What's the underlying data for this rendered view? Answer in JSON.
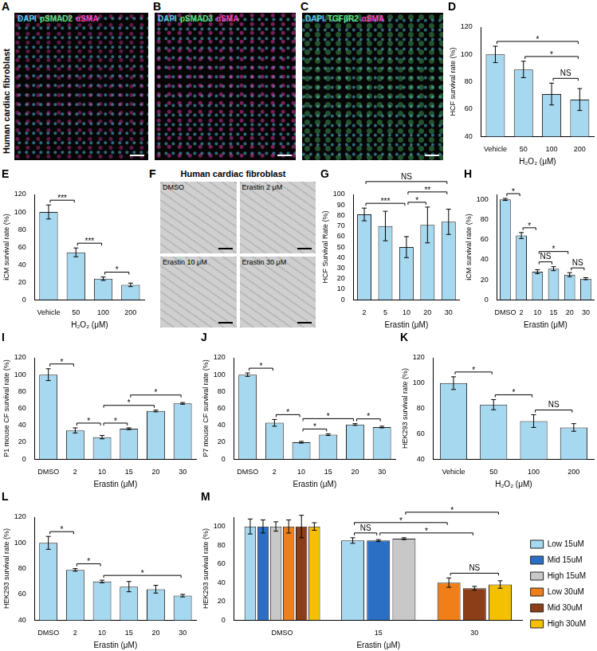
{
  "panels": [
    {
      "panel_label": "A",
      "side_label": "Human cardiac fibroblast",
      "stain": [
        {
          "text": "DAPI",
          "color": "#5ec8f0"
        },
        {
          "text": "pSMAD2",
          "color": "#5be07a"
        },
        {
          "text": "αSMA",
          "color": "#ff3fbf"
        }
      ]
    },
    {
      "panel_label": "B",
      "stain": [
        {
          "text": "DAPI",
          "color": "#5ec8f0"
        },
        {
          "text": "pSMAD3",
          "color": "#5be07a"
        },
        {
          "text": "αSMA",
          "color": "#ff3fbf"
        }
      ]
    },
    {
      "panel_label": "C",
      "stain": [
        {
          "text": "DAPI",
          "color": "#5ec8f0"
        },
        {
          "text": "TGFβR2",
          "color": "#5be07a"
        },
        {
          "text": "αSMA",
          "color": "#ff3fbf"
        }
      ]
    },
    {
      "panel_label": "F",
      "title": "Human cardiac fibroblast",
      "images": [
        "DMSO",
        "Erastin 2 μM",
        "Erastin 10 μM",
        "Erastin 30 μM"
      ]
    }
  ],
  "chart_data": [
    {
      "panel_label": "D",
      "type": "bar",
      "categories": [
        "Vehicle",
        "50",
        "100",
        "200"
      ],
      "values": [
        100,
        89,
        71,
        67
      ],
      "errors": [
        6,
        6,
        8,
        8
      ],
      "color": "#a6d8f0",
      "y_label": "HCF survival rate (%)",
      "x_label": "H₂O₂ (μM)",
      "ylim": [
        40,
        120
      ],
      "yticks": [
        40,
        60,
        80,
        100,
        120
      ],
      "grid": false,
      "annotations": [
        {
          "between": [
            "Vehicle",
            "200"
          ],
          "text": "*"
        },
        {
          "between": [
            "50",
            "200"
          ],
          "text": "*"
        },
        {
          "between": [
            "100",
            "200"
          ],
          "text": "NS"
        }
      ]
    },
    {
      "panel_label": "E",
      "type": "bar",
      "categories": [
        "Vehicle",
        "50",
        "100",
        "200"
      ],
      "values": [
        100,
        54,
        24,
        17
      ],
      "errors": [
        8,
        5,
        2,
        2
      ],
      "color": "#a6d8f0",
      "y_label": "iCM survival rate (%)",
      "x_label": "H₂O₂ (μM)",
      "ylim": [
        0,
        120
      ],
      "yticks": [
        0,
        20,
        40,
        60,
        80,
        100,
        120
      ],
      "grid": false,
      "annotations": [
        {
          "between": [
            "Vehicle",
            "50"
          ],
          "text": "***"
        },
        {
          "between": [
            "50",
            "100"
          ],
          "text": "***"
        },
        {
          "between": [
            "100",
            "200"
          ],
          "text": "*"
        }
      ]
    },
    {
      "panel_label": "G",
      "type": "bar",
      "categories": [
        "2",
        "5",
        "10",
        "20",
        "30"
      ],
      "values": [
        81,
        70,
        50,
        71,
        74
      ],
      "errors": [
        6,
        14,
        10,
        17,
        12
      ],
      "color": "#a6d8f0",
      "y_label": "HCF Survival Rate (%)",
      "x_label": "Erastin (μM)",
      "ylim": [
        0,
        100
      ],
      "yticks": [
        0,
        10,
        20,
        30,
        40,
        50,
        60,
        70,
        80,
        90,
        100
      ],
      "grid": false,
      "annotations": [
        {
          "between": [
            "2",
            "10"
          ],
          "text": "***"
        },
        {
          "between": [
            "10",
            "20"
          ],
          "text": "*"
        },
        {
          "between": [
            "10",
            "30"
          ],
          "text": "**"
        },
        {
          "between": [
            "2",
            "30"
          ],
          "text": "NS"
        }
      ]
    },
    {
      "panel_label": "H",
      "type": "bar",
      "categories": [
        "DMSO",
        "2",
        "10",
        "15",
        "20",
        "30"
      ],
      "values": [
        100,
        64,
        28,
        31,
        25,
        21
      ],
      "errors": [
        1,
        3,
        2,
        2,
        2,
        1
      ],
      "color": "#a6d8f0",
      "y_label": "iCM survival rate (%)",
      "x_label": "Erastin (μM)",
      "ylim": [
        0,
        105
      ],
      "yticks": [
        0,
        20,
        40,
        60,
        80,
        100
      ],
      "grid": false,
      "annotations": [
        {
          "between": [
            "DMSO",
            "2"
          ],
          "text": "*"
        },
        {
          "between": [
            "2",
            "10"
          ],
          "text": "*"
        },
        {
          "between": [
            "10",
            "15"
          ],
          "text": "NS"
        },
        {
          "between": [
            "10",
            "20"
          ],
          "text": "*"
        },
        {
          "between": [
            "20",
            "30"
          ],
          "text": "NS"
        }
      ]
    },
    {
      "panel_label": "I",
      "type": "bar",
      "categories": [
        "DMSO",
        "2",
        "10",
        "15",
        "20",
        "30"
      ],
      "values": [
        100,
        34,
        26,
        36,
        57,
        66
      ],
      "errors": [
        7,
        3,
        2,
        1,
        1,
        1
      ],
      "color": "#a6d8f0",
      "y_label": "P1 mouse CF survival rate (%)",
      "x_label": "Erastin (μM)",
      "ylim": [
        0,
        120
      ],
      "yticks": [
        0,
        20,
        40,
        60,
        80,
        100,
        120
      ],
      "grid": false,
      "annotations": [
        {
          "between": [
            "DMSO",
            "2"
          ],
          "text": "*"
        },
        {
          "between": [
            "2",
            "10"
          ],
          "text": "*"
        },
        {
          "between": [
            "10",
            "15"
          ],
          "text": "*"
        },
        {
          "between": [
            "10",
            "20"
          ],
          "text": "*"
        },
        {
          "between": [
            "15",
            "30"
          ],
          "text": "*"
        }
      ]
    },
    {
      "panel_label": "J",
      "type": "bar",
      "categories": [
        "DMSO",
        "2",
        "10",
        "15",
        "20",
        "30"
      ],
      "values": [
        100,
        43,
        20,
        29,
        41,
        38
      ],
      "errors": [
        2,
        4,
        1,
        1,
        1,
        1
      ],
      "color": "#a6d8f0",
      "y_label": "P7 mouse CF survival rate (%)",
      "x_label": "Erastin (μM)",
      "ylim": [
        0,
        120
      ],
      "yticks": [
        0,
        20,
        40,
        60,
        80,
        100,
        120
      ],
      "grid": false,
      "annotations": [
        {
          "between": [
            "DMSO",
            "2"
          ],
          "text": "*"
        },
        {
          "between": [
            "2",
            "10"
          ],
          "text": "*"
        },
        {
          "between": [
            "10",
            "15"
          ],
          "text": "*"
        },
        {
          "between": [
            "10",
            "20"
          ],
          "text": "*"
        },
        {
          "between": [
            "20",
            "30"
          ],
          "text": "*"
        }
      ]
    },
    {
      "panel_label": "K",
      "type": "bar",
      "categories": [
        "Vehicle",
        "50",
        "100",
        "200"
      ],
      "values": [
        100,
        83,
        70,
        65
      ],
      "errors": [
        5,
        4,
        5,
        3
      ],
      "color": "#a6d8f0",
      "y_label": "HEK293 survival rate (%)",
      "x_label": "H₂O₂ (μM)",
      "ylim": [
        40,
        120
      ],
      "yticks": [
        40,
        60,
        80,
        100,
        120
      ],
      "grid": false,
      "annotations": [
        {
          "between": [
            "Vehicle",
            "50"
          ],
          "text": "*"
        },
        {
          "between": [
            "50",
            "100"
          ],
          "text": "*"
        },
        {
          "between": [
            "100",
            "200"
          ],
          "text": "NS"
        }
      ]
    },
    {
      "panel_label": "L",
      "type": "bar",
      "categories": [
        "DMSO",
        "2",
        "10",
        "15",
        "20",
        "30"
      ],
      "values": [
        100,
        79,
        70,
        66,
        64,
        59
      ],
      "errors": [
        5,
        1,
        1,
        4,
        3,
        1
      ],
      "color": "#a6d8f0",
      "y_label": "HEK293 survival rate (%)",
      "x_label": "Erastin (μM)",
      "ylim": [
        40,
        120
      ],
      "yticks": [
        40,
        60,
        80,
        100,
        120
      ],
      "grid": false,
      "annotations": [
        {
          "between": [
            "DMSO",
            "2"
          ],
          "text": "*"
        },
        {
          "between": [
            "2",
            "10"
          ],
          "text": "*"
        },
        {
          "between": [
            "10",
            "30"
          ],
          "text": "*"
        }
      ]
    },
    {
      "panel_label": "M",
      "type": "bar",
      "categories": [
        "DMSO",
        "15",
        "30"
      ],
      "y_label": "HEK293 survival rate (%)",
      "x_label": "Erastin (μM)",
      "ylim": [
        0,
        110
      ],
      "yticks": [
        0,
        20,
        40,
        60,
        80,
        100
      ],
      "grid": false,
      "legend": "right",
      "series": [
        {
          "name": "Low 15uM",
          "color": "#a6d8f0",
          "values": [
            100,
            85,
            null
          ],
          "errors": [
            8,
            3,
            null
          ]
        },
        {
          "name": "Mid 15uM",
          "color": "#2b6fc4",
          "values": [
            100,
            85,
            null
          ],
          "errors": [
            7,
            1,
            null
          ]
        },
        {
          "name": "High 15uM",
          "color": "#c8c8c8",
          "values": [
            100,
            87,
            null
          ],
          "errors": [
            5,
            1,
            null
          ]
        },
        {
          "name": "Low 30uM",
          "color": "#f07f1a",
          "values": [
            100,
            null,
            40
          ],
          "errors": [
            7,
            null,
            5
          ]
        },
        {
          "name": "Mid 30uM",
          "color": "#8b3e17",
          "values": [
            100,
            null,
            34
          ],
          "errors": [
            12,
            null,
            2
          ]
        },
        {
          "name": "High 30uM",
          "color": "#f5c000",
          "values": [
            100,
            null,
            38
          ],
          "errors": [
            4,
            null,
            4
          ]
        }
      ],
      "annotations": [
        {
          "between": [
            [
              "15",
              "Low 15uM"
            ],
            [
              "15",
              "Mid 15uM"
            ]
          ],
          "text": "NS"
        },
        {
          "between": [
            [
              "15",
              "Low 15uM"
            ],
            [
              "30",
              "Low 30uM"
            ]
          ],
          "text": "*"
        },
        {
          "between": [
            [
              "15",
              "Mid 15uM"
            ],
            [
              "30",
              "Mid 30uM"
            ]
          ],
          "text": "*"
        },
        {
          "between": [
            [
              "15",
              "High 15uM"
            ],
            [
              "30",
              "High 30uM"
            ]
          ],
          "text": "*"
        },
        {
          "between": [
            [
              "30",
              "Low 30uM"
            ],
            [
              "30",
              "High 30uM"
            ]
          ],
          "text": "NS"
        }
      ]
    }
  ]
}
